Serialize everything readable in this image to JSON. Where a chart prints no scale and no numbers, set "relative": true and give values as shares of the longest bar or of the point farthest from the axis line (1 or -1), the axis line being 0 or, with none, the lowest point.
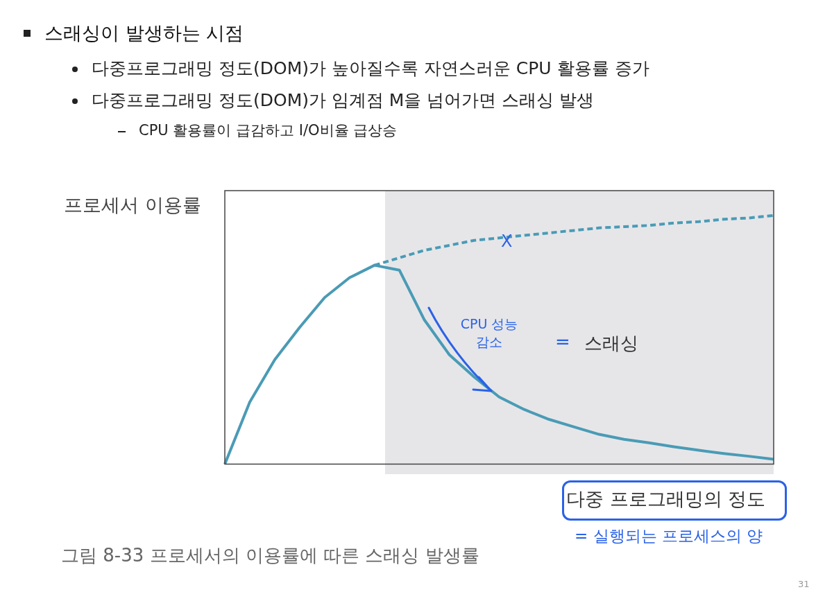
{
  "chart_data": {
    "type": "line",
    "relative": true,
    "title": "스래싱이 발생하는 시점",
    "ylabel": "프로세서 이용률",
    "xlabel": "다중 프로그래밍의 정도",
    "categories": [
      null,
      null,
      null,
      null,
      null,
      null,
      null,
      null,
      null,
      null,
      null,
      null,
      null,
      null,
      null,
      null,
      null,
      null,
      null,
      null,
      null,
      null,
      null
    ],
    "grid": false,
    "legend": false,
    "marker": "none",
    "series": [
      {
        "color": "#4a9bb5",
        "line_style": "solid",
        "values": [
          0,
          0.25,
          0.42,
          0.55,
          0.67,
          0.75,
          0.8,
          0.78,
          0.58,
          0.44,
          0.35,
          0.27,
          0.22,
          0.18,
          0.15,
          0.12,
          0.1,
          0.086,
          0.07,
          0.056,
          0.043,
          0.032,
          0.02
        ]
      },
      {
        "color": "#4a9bb5",
        "line_style": "dashed",
        "values": [
          null,
          null,
          null,
          null,
          null,
          null,
          0.8,
          0.83,
          0.86,
          0.88,
          0.9,
          0.91,
          0.92,
          0.93,
          0.94,
          0.95,
          0.955,
          0.96,
          0.97,
          0.975,
          0.985,
          0.99,
          1
        ]
      }
    ],
    "annotations": [
      "다중프로그래밍 정도(DOM)가 높아질수록 자연스러운 CPU 활용률 증가",
      "다중프로그래밍 정도(DOM)가 임계점 M을 넘어가면 스래싱 발생",
      "CPU 활용률이 급감하고 I/O비율 급상승",
      "스래싱",
      "CPU 성능감소",
      "=",
      "X",
      "= 실행되는 프로세스의 양",
      "그림 8-33  프로세서의 이용률에 따른 스래싱 발생률",
      "31"
    ]
  }
}
